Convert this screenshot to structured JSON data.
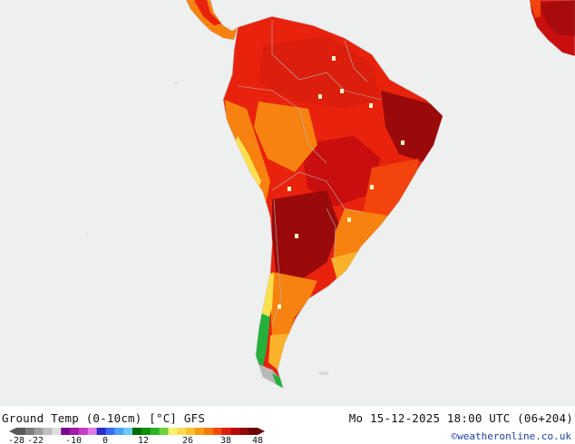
{
  "map": {
    "background_color": "#eef0f0",
    "land_border_color": "#c8c8c8",
    "heat_colors": {
      "very_hot": "#9a0a0a",
      "hot": "#c80e0e",
      "warm_red": "#e8220d",
      "orange_red": "#f2440c",
      "orange": "#f7820f",
      "yellow_orange": "#fbb22a",
      "yellow": "#fde04d",
      "green": "#25b03c",
      "grey_ice": "#b9b9b9"
    }
  },
  "footer": {
    "title": "Ground Temp (0-10cm) [°C] GFS",
    "timestamp": "Mo 15-12-2025 18:00 UTC (06+204)",
    "credit": "©weatheronline.co.uk"
  },
  "legend": {
    "ticks": [
      "-28",
      "-22",
      "-10",
      "0",
      "12",
      "26",
      "38",
      "48"
    ],
    "tick_values": [
      -28,
      -22,
      -10,
      0,
      12,
      26,
      38,
      48
    ],
    "colors": [
      "#5a5a5a",
      "#7c7c7c",
      "#9e9e9e",
      "#c0c0c0",
      "#dedede",
      "#7a0a8a",
      "#a51aa8",
      "#c63cc6",
      "#e27ae6",
      "#2b2bc8",
      "#3a6cf0",
      "#4aa2f8",
      "#69cdf8",
      "#006a00",
      "#0a920a",
      "#28b428",
      "#6ed040",
      "#f4f06a",
      "#fbd950",
      "#fbbf30",
      "#f89c18",
      "#f47a10",
      "#ef4a0c",
      "#dc1e0c",
      "#b80c0c",
      "#940808",
      "#6e0404"
    ]
  }
}
